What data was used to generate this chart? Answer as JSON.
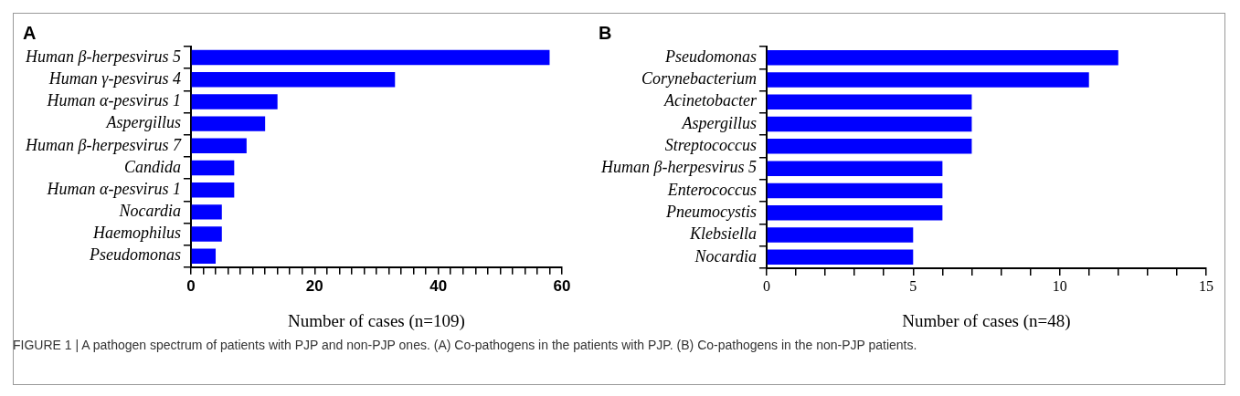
{
  "chart_data": [
    {
      "type": "bar",
      "orientation": "horizontal",
      "title": "A",
      "xlabel": "Number of cases (n=109)",
      "categories": [
        "Human β-herpesvirus 5",
        "Human γ-pesvirus 4",
        "Human α-pesvirus 1",
        "Aspergillus",
        "Human β-herpesvirus 7",
        "Candida",
        "Human α-pesvirus 1",
        "Nocardia",
        "Haemophilus",
        "Pseudomonas"
      ],
      "values": [
        58,
        33,
        14,
        12,
        9,
        7,
        7,
        5,
        5,
        4
      ],
      "color": "#0000ff",
      "xlim": [
        0,
        60
      ],
      "xticks": [
        0,
        {
          "value": 2,
          "label": null
        },
        {
          "value": 4,
          "label": null
        },
        {
          "value": 6,
          "label": null
        },
        {
          "value": 8,
          "label": null
        },
        {
          "value": 10,
          "label": null
        },
        {
          "value": 12,
          "label": null
        },
        {
          "value": 14,
          "label": null
        },
        {
          "value": 16,
          "label": null
        },
        {
          "value": 18,
          "label": null
        },
        20,
        {
          "value": 22,
          "label": null
        },
        {
          "value": 24,
          "label": null
        },
        {
          "value": 26,
          "label": null
        },
        {
          "value": 28,
          "label": null
        },
        {
          "value": 30,
          "label": null
        },
        {
          "value": 32,
          "label": null
        },
        {
          "value": 34,
          "label": null
        },
        {
          "value": 36,
          "label": null
        },
        {
          "value": 38,
          "label": null
        },
        40,
        {
          "value": 42,
          "label": null
        },
        {
          "value": 44,
          "label": null
        },
        {
          "value": 46,
          "label": null
        },
        {
          "value": 48,
          "label": null
        },
        {
          "value": 50,
          "label": null
        },
        {
          "value": 52,
          "label": null
        },
        {
          "value": 54,
          "label": null
        },
        {
          "value": 56,
          "label": null
        },
        {
          "value": 58,
          "label": null
        },
        60
      ],
      "grid": false,
      "legend": false
    },
    {
      "type": "bar",
      "orientation": "horizontal",
      "title": "B",
      "xlabel": "Number of cases (n=48)",
      "categories": [
        "Pseudomonas",
        "Corynebacterium",
        "Acinetobacter",
        "Aspergillus",
        "Streptococcus",
        "Human β-herpesvirus 5",
        "Enterococcus",
        "Pneumocystis",
        "Klebsiella",
        "Nocardia"
      ],
      "values": [
        12,
        11,
        7,
        7,
        7,
        6,
        6,
        6,
        5,
        5
      ],
      "color": "#0000ff",
      "xlim": [
        0,
        15
      ],
      "xticks": [
        0,
        {
          "value": 1,
          "label": null
        },
        {
          "value": 2,
          "label": null
        },
        {
          "value": 3,
          "label": null
        },
        {
          "value": 4,
          "label": null
        },
        5,
        {
          "value": 6,
          "label": null
        },
        {
          "value": 7,
          "label": null
        },
        {
          "value": 8,
          "label": null
        },
        {
          "value": 9,
          "label": null
        },
        10,
        {
          "value": 11,
          "label": null
        },
        {
          "value": 12,
          "label": null
        },
        {
          "value": 13,
          "label": null
        },
        {
          "value": 14,
          "label": null
        },
        15
      ],
      "grid": false,
      "legend": false,
      "annotations": [
        "FIGURE 1 | A pathogen spectrum of patients with PJP and non-PJP ones. (A) Co-pathogens in the patients with PJP. (B) Co-pathogens in the non-PJP patients."
      ]
    }
  ]
}
